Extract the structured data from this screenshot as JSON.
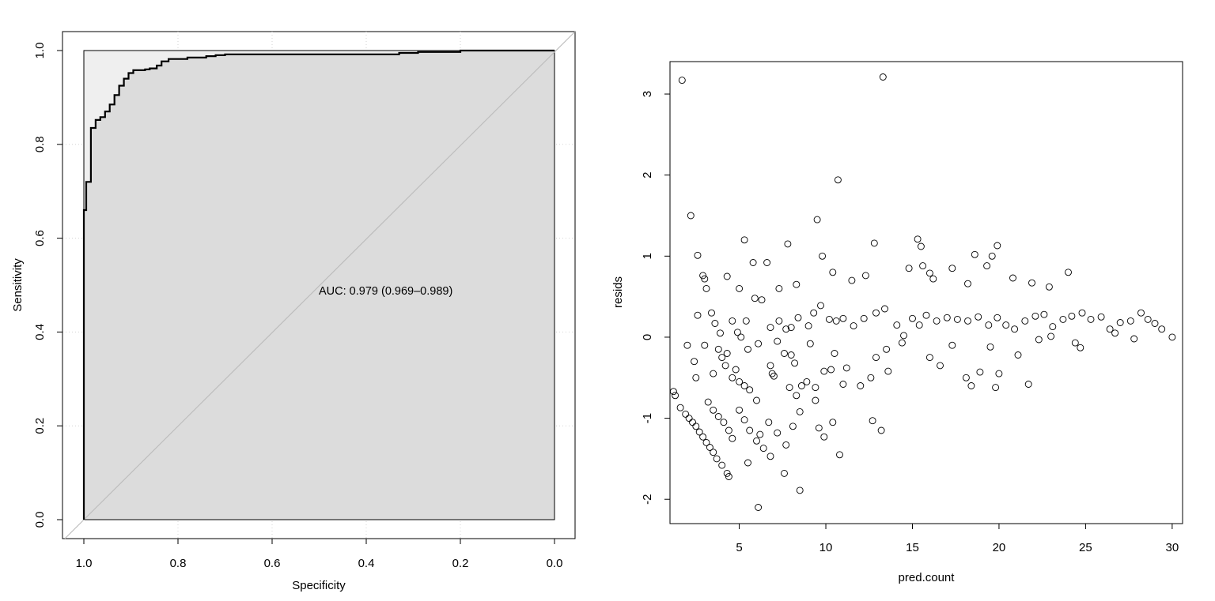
{
  "chart_data": [
    {
      "type": "line",
      "subtype": "roc",
      "xlabel": "Specificity",
      "ylabel": "Sensitivity",
      "xlim": [
        1.0,
        0.0
      ],
      "ylim": [
        0.0,
        1.0
      ],
      "x_reversed": true,
      "grid": true,
      "x_ticks": [
        "1.0",
        "0.8",
        "0.6",
        "0.4",
        "0.2",
        "0.0"
      ],
      "y_ticks": [
        "0.0",
        "0.2",
        "0.4",
        "0.6",
        "0.8",
        "1.0"
      ],
      "annotation": "AUC: 0.979 (0.969–0.989)",
      "auc": 0.979,
      "auc_ci": [
        0.969,
        0.989
      ],
      "series": [
        {
          "specificity": [
            1.0,
            1.0,
            0.995,
            0.995,
            0.985,
            0.985,
            0.975,
            0.975,
            0.965,
            0.965,
            0.955,
            0.955,
            0.945,
            0.945,
            0.935,
            0.935,
            0.925,
            0.925,
            0.915,
            0.915,
            0.905,
            0.905,
            0.895,
            0.895,
            0.87,
            0.87,
            0.86,
            0.86,
            0.845,
            0.845,
            0.835,
            0.835,
            0.82,
            0.82,
            0.78,
            0.78,
            0.74,
            0.74,
            0.72,
            0.72,
            0.7,
            0.7,
            0.33,
            0.33,
            0.29,
            0.29,
            0.2,
            0.2,
            0.0
          ],
          "sensitivity": [
            0.0,
            0.66,
            0.66,
            0.72,
            0.72,
            0.835,
            0.835,
            0.852,
            0.852,
            0.858,
            0.858,
            0.87,
            0.87,
            0.885,
            0.885,
            0.905,
            0.905,
            0.925,
            0.925,
            0.94,
            0.94,
            0.952,
            0.952,
            0.958,
            0.958,
            0.96,
            0.96,
            0.962,
            0.962,
            0.968,
            0.968,
            0.977,
            0.977,
            0.982,
            0.982,
            0.985,
            0.985,
            0.988,
            0.988,
            0.99,
            0.99,
            0.992,
            0.992,
            0.995,
            0.995,
            0.997,
            0.997,
            1.0,
            1.0
          ]
        }
      ]
    },
    {
      "type": "scatter",
      "xlabel": "pred.count",
      "ylabel": "resids",
      "xlim": [
        1.0,
        30.6
      ],
      "ylim": [
        -2.3,
        3.4
      ],
      "x_ticks": [
        "5",
        "10",
        "15",
        "20",
        "25",
        "30"
      ],
      "y_ticks": [
        "-2",
        "-1",
        "0",
        "1",
        "2",
        "3"
      ],
      "grid": false,
      "series": [
        {
          "points": [
            [
              1.7,
              3.17
            ],
            [
              13.3,
              3.21
            ],
            [
              2.2,
              1.5
            ],
            [
              10.7,
              1.94
            ],
            [
              9.5,
              1.45
            ],
            [
              5.3,
              1.2
            ],
            [
              7.8,
              1.15
            ],
            [
              12.8,
              1.16
            ],
            [
              15.3,
              1.21
            ],
            [
              15.5,
              1.12
            ],
            [
              18.6,
              1.02
            ],
            [
              19.9,
              1.13
            ],
            [
              2.6,
              1.01
            ],
            [
              2.9,
              0.76
            ],
            [
              3.0,
              0.72
            ],
            [
              3.1,
              0.6
            ],
            [
              4.3,
              0.75
            ],
            [
              5.0,
              0.6
            ],
            [
              5.8,
              0.92
            ],
            [
              6.6,
              0.92
            ],
            [
              7.3,
              0.6
            ],
            [
              8.3,
              0.65
            ],
            [
              9.8,
              1.0
            ],
            [
              10.4,
              0.8
            ],
            [
              11.5,
              0.7
            ],
            [
              12.3,
              0.76
            ],
            [
              14.8,
              0.85
            ],
            [
              15.6,
              0.88
            ],
            [
              16.0,
              0.79
            ],
            [
              16.2,
              0.72
            ],
            [
              17.3,
              0.85
            ],
            [
              18.2,
              0.66
            ],
            [
              19.3,
              0.88
            ],
            [
              19.6,
              1.0
            ],
            [
              20.8,
              0.73
            ],
            [
              21.9,
              0.67
            ],
            [
              22.9,
              0.62
            ],
            [
              24.0,
              0.8
            ],
            [
              2.6,
              0.27
            ],
            [
              3.4,
              0.3
            ],
            [
              3.6,
              0.17
            ],
            [
              3.9,
              0.05
            ],
            [
              4.6,
              0.2
            ],
            [
              4.9,
              0.06
            ],
            [
              5.4,
              0.2
            ],
            [
              5.9,
              0.48
            ],
            [
              6.3,
              0.46
            ],
            [
              6.8,
              0.12
            ],
            [
              7.3,
              0.2
            ],
            [
              7.7,
              0.1
            ],
            [
              8.0,
              0.12
            ],
            [
              8.4,
              0.24
            ],
            [
              9.0,
              0.14
            ],
            [
              9.3,
              0.3
            ],
            [
              9.7,
              0.39
            ],
            [
              10.2,
              0.22
            ],
            [
              10.6,
              0.2
            ],
            [
              11.0,
              0.23
            ],
            [
              11.6,
              0.14
            ],
            [
              12.2,
              0.23
            ],
            [
              12.9,
              0.3
            ],
            [
              13.4,
              0.35
            ],
            [
              14.1,
              0.15
            ],
            [
              14.5,
              0.02
            ],
            [
              15.0,
              0.23
            ],
            [
              15.4,
              0.15
            ],
            [
              15.8,
              0.27
            ],
            [
              16.4,
              0.2
            ],
            [
              17.0,
              0.24
            ],
            [
              17.6,
              0.22
            ],
            [
              18.2,
              0.2
            ],
            [
              18.8,
              0.25
            ],
            [
              19.4,
              0.15
            ],
            [
              19.9,
              0.24
            ],
            [
              20.4,
              0.15
            ],
            [
              20.9,
              0.1
            ],
            [
              21.5,
              0.2
            ],
            [
              22.1,
              0.26
            ],
            [
              22.6,
              0.28
            ],
            [
              23.1,
              0.13
            ],
            [
              23.7,
              0.22
            ],
            [
              24.2,
              0.26
            ],
            [
              24.8,
              0.3
            ],
            [
              25.3,
              0.22
            ],
            [
              25.9,
              0.25
            ],
            [
              26.4,
              0.1
            ],
            [
              27.0,
              0.18
            ],
            [
              27.6,
              0.2
            ],
            [
              28.2,
              0.3
            ],
            [
              28.6,
              0.22
            ],
            [
              29.0,
              0.17
            ],
            [
              29.4,
              0.1
            ],
            [
              30.0,
              0.0
            ],
            [
              2.0,
              -0.1
            ],
            [
              2.4,
              -0.3
            ],
            [
              2.5,
              -0.5
            ],
            [
              3.0,
              -0.1
            ],
            [
              3.5,
              -0.45
            ],
            [
              4.3,
              -0.2
            ],
            [
              4.8,
              -0.4
            ],
            [
              5.3,
              -0.6
            ],
            [
              6.1,
              -0.08
            ],
            [
              6.8,
              -0.35
            ],
            [
              7.2,
              -0.05
            ],
            [
              7.6,
              -0.2
            ],
            [
              8.2,
              -0.32
            ],
            [
              8.6,
              -0.6
            ],
            [
              9.1,
              -0.08
            ],
            [
              9.4,
              -0.62
            ],
            [
              9.9,
              -0.42
            ],
            [
              10.5,
              -0.2
            ],
            [
              11.2,
              -0.38
            ],
            [
              12.0,
              -0.6
            ],
            [
              12.9,
              -0.25
            ],
            [
              13.5,
              -0.15
            ],
            [
              14.4,
              -0.07
            ],
            [
              16.0,
              -0.25
            ],
            [
              16.6,
              -0.35
            ],
            [
              17.3,
              -0.1
            ],
            [
              18.1,
              -0.5
            ],
            [
              18.9,
              -0.43
            ],
            [
              19.5,
              -0.12
            ],
            [
              20.0,
              -0.45
            ],
            [
              21.1,
              -0.22
            ],
            [
              21.7,
              -0.58
            ],
            [
              22.3,
              -0.03
            ],
            [
              23.0,
              0.01
            ],
            [
              24.4,
              -0.07
            ],
            [
              24.7,
              -0.13
            ],
            [
              26.7,
              0.05
            ],
            [
              27.8,
              -0.02
            ],
            [
              1.2,
              -0.67
            ],
            [
              1.3,
              -0.72
            ],
            [
              1.6,
              -0.87
            ],
            [
              1.9,
              -0.95
            ],
            [
              2.1,
              -1.0
            ],
            [
              2.3,
              -1.05
            ],
            [
              2.5,
              -1.1
            ],
            [
              2.7,
              -1.17
            ],
            [
              2.9,
              -1.23
            ],
            [
              3.1,
              -1.3
            ],
            [
              3.3,
              -1.36
            ],
            [
              3.5,
              -1.42
            ],
            [
              3.7,
              -1.5
            ],
            [
              4.0,
              -1.58
            ],
            [
              4.3,
              -1.68
            ],
            [
              4.4,
              -1.72
            ],
            [
              3.2,
              -0.8
            ],
            [
              3.5,
              -0.9
            ],
            [
              3.8,
              -0.98
            ],
            [
              4.1,
              -1.05
            ],
            [
              4.4,
              -1.15
            ],
            [
              4.6,
              -1.25
            ],
            [
              5.0,
              -0.9
            ],
            [
              5.3,
              -1.02
            ],
            [
              5.6,
              -1.15
            ],
            [
              6.0,
              -1.28
            ],
            [
              6.4,
              -1.37
            ],
            [
              6.8,
              -1.47
            ],
            [
              5.5,
              -1.55
            ],
            [
              6.2,
              -1.2
            ],
            [
              6.7,
              -1.05
            ],
            [
              7.2,
              -1.18
            ],
            [
              7.7,
              -1.33
            ],
            [
              7.6,
              -1.68
            ],
            [
              8.1,
              -1.1
            ],
            [
              8.5,
              -0.92
            ],
            [
              8.3,
              -0.72
            ],
            [
              8.9,
              -0.55
            ],
            [
              9.4,
              -0.78
            ],
            [
              9.6,
              -1.12
            ],
            [
              9.9,
              -1.23
            ],
            [
              10.4,
              -1.05
            ],
            [
              10.8,
              -1.45
            ],
            [
              12.7,
              -1.03
            ],
            [
              13.2,
              -1.15
            ],
            [
              6.1,
              -2.1
            ],
            [
              8.5,
              -1.89
            ],
            [
              10.3,
              -0.4
            ],
            [
              11.0,
              -0.58
            ],
            [
              12.6,
              -0.5
            ],
            [
              13.6,
              -0.42
            ],
            [
              19.8,
              -0.62
            ],
            [
              18.4,
              -0.6
            ],
            [
              4.6,
              -0.5
            ],
            [
              5.0,
              -0.55
            ],
            [
              5.6,
              -0.65
            ],
            [
              6.0,
              -0.78
            ],
            [
              7.0,
              -0.48
            ],
            [
              7.9,
              -0.62
            ],
            [
              4.2,
              -0.35
            ],
            [
              4.0,
              -0.25
            ],
            [
              3.8,
              -0.15
            ],
            [
              5.1,
              0.0
            ],
            [
              5.5,
              -0.15
            ],
            [
              6.9,
              -0.45
            ],
            [
              8.0,
              -0.22
            ]
          ]
        }
      ]
    }
  ]
}
